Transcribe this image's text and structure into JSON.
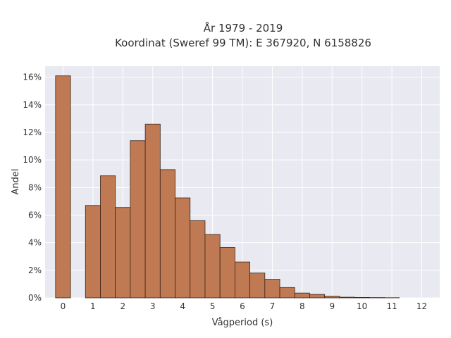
{
  "chart_data": {
    "type": "bar",
    "title_line1": "År 1979 - 2019",
    "title_line2": "Koordinat (Sweref 99 TM): E 367920, N 6158826",
    "xlabel": "Vågperiod (s)",
    "ylabel": "Andel",
    "bin_width": 0.5,
    "x_bin_starts": [
      -0.25,
      0.25,
      0.75,
      1.25,
      1.75,
      2.25,
      2.75,
      3.25,
      3.75,
      4.25,
      4.75,
      5.25,
      5.75,
      6.25,
      6.75,
      7.25,
      7.75,
      8.25,
      8.75,
      9.25,
      9.75,
      10.25,
      10.75,
      11.25,
      11.75
    ],
    "values": [
      16.1,
      0,
      6.7,
      8.85,
      6.55,
      11.4,
      12.6,
      9.3,
      7.25,
      5.6,
      4.6,
      3.65,
      2.6,
      1.8,
      1.35,
      0.75,
      0.35,
      0.25,
      0.12,
      0.05,
      0.03,
      0.02,
      0.01,
      0,
      0
    ],
    "xlim": [
      -0.6,
      12.6
    ],
    "ylim": [
      0,
      16.8
    ],
    "x_ticks": [
      0,
      1,
      2,
      3,
      4,
      5,
      6,
      7,
      8,
      9,
      10,
      11,
      12
    ],
    "x_tick_labels": [
      "0",
      "1",
      "2",
      "3",
      "4",
      "5",
      "6",
      "7",
      "8",
      "9",
      "10",
      "11",
      "12"
    ],
    "y_ticks": [
      0,
      2,
      4,
      6,
      8,
      10,
      12,
      14,
      16
    ],
    "y_tick_labels": [
      "0%",
      "2%",
      "4%",
      "6%",
      "8%",
      "10%",
      "12%",
      "14%",
      "16%"
    ],
    "grid": true,
    "colors": {
      "bar_fill": "#c07a53",
      "bar_edge": "#3a2418",
      "plot_bg": "#e9e9f1",
      "grid": "#ffffff"
    }
  }
}
